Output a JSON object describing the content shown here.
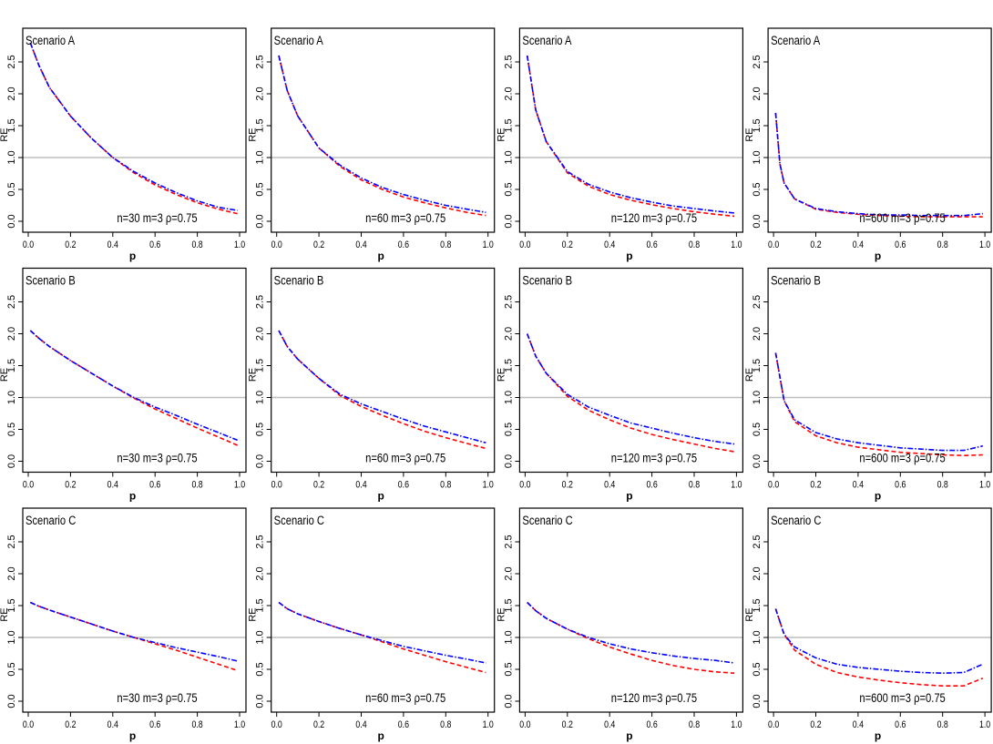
{
  "common": {
    "xlabel": "p",
    "ylabel": "RE",
    "xlim": [
      0,
      1
    ],
    "ylim": [
      0,
      3.0
    ],
    "xticks": [
      "0.0",
      "0.2",
      "0.4",
      "0.6",
      "0.8",
      "1.0"
    ],
    "yticks": [
      "0.0",
      "0.5",
      "1.0",
      "1.5",
      "2.0",
      "2.5"
    ],
    "reference_line": 1.0,
    "reference_color": "#bebebe",
    "series_styles": [
      {
        "color": "#ff0000",
        "dash": "dashed"
      },
      {
        "color": "#0000ff",
        "dash": "dashdot"
      }
    ]
  },
  "chart_data": [
    {
      "type": "line",
      "title": "Scenario A",
      "annotation": "n=30 m=3 ρ=0.75",
      "x": [
        0.01,
        0.05,
        0.1,
        0.2,
        0.3,
        0.4,
        0.5,
        0.6,
        0.7,
        0.8,
        0.9,
        0.99
      ],
      "series": [
        {
          "values": [
            2.8,
            2.45,
            2.1,
            1.65,
            1.3,
            1.0,
            0.76,
            0.57,
            0.42,
            0.29,
            0.19,
            0.12
          ]
        },
        {
          "values": [
            2.8,
            2.45,
            2.1,
            1.65,
            1.3,
            1.0,
            0.78,
            0.6,
            0.45,
            0.32,
            0.22,
            0.17
          ]
        }
      ]
    },
    {
      "type": "line",
      "title": "Scenario A",
      "annotation": "n=60 m=3 ρ=0.75",
      "x": [
        0.01,
        0.05,
        0.1,
        0.2,
        0.3,
        0.4,
        0.5,
        0.6,
        0.7,
        0.8,
        0.9,
        0.99
      ],
      "series": [
        {
          "values": [
            2.6,
            2.05,
            1.65,
            1.15,
            0.86,
            0.65,
            0.5,
            0.38,
            0.29,
            0.21,
            0.14,
            0.09
          ]
        },
        {
          "values": [
            2.6,
            2.05,
            1.65,
            1.15,
            0.88,
            0.68,
            0.53,
            0.42,
            0.33,
            0.25,
            0.19,
            0.14
          ]
        }
      ]
    },
    {
      "type": "line",
      "title": "Scenario A",
      "annotation": "n=120 m=3 ρ=0.75",
      "x": [
        0.01,
        0.05,
        0.1,
        0.2,
        0.3,
        0.4,
        0.5,
        0.6,
        0.7,
        0.8,
        0.9,
        0.99
      ],
      "series": [
        {
          "values": [
            2.6,
            1.75,
            1.25,
            0.76,
            0.55,
            0.42,
            0.33,
            0.26,
            0.2,
            0.15,
            0.11,
            0.08
          ]
        },
        {
          "values": [
            2.6,
            1.75,
            1.25,
            0.78,
            0.58,
            0.46,
            0.37,
            0.3,
            0.24,
            0.2,
            0.16,
            0.13
          ]
        }
      ]
    },
    {
      "type": "line",
      "title": "Scenario A",
      "annotation": "n=600 m=3 ρ=0.75",
      "x": [
        0.01,
        0.03,
        0.05,
        0.1,
        0.2,
        0.3,
        0.4,
        0.5,
        0.6,
        0.7,
        0.8,
        0.9,
        0.99
      ],
      "series": [
        {
          "values": [
            1.7,
            0.9,
            0.6,
            0.35,
            0.19,
            0.14,
            0.11,
            0.09,
            0.08,
            0.07,
            0.07,
            0.07,
            0.07
          ]
        },
        {
          "values": [
            1.7,
            0.9,
            0.6,
            0.35,
            0.2,
            0.15,
            0.12,
            0.1,
            0.1,
            0.09,
            0.09,
            0.09,
            0.12
          ]
        }
      ]
    },
    {
      "type": "line",
      "title": "Scenario B",
      "annotation": "n=30 m=3 ρ=0.75",
      "x": [
        0.01,
        0.05,
        0.1,
        0.2,
        0.3,
        0.4,
        0.5,
        0.6,
        0.7,
        0.8,
        0.9,
        0.99
      ],
      "series": [
        {
          "values": [
            2.05,
            1.93,
            1.8,
            1.58,
            1.38,
            1.18,
            0.99,
            0.82,
            0.67,
            0.52,
            0.38,
            0.25
          ]
        },
        {
          "values": [
            2.05,
            1.93,
            1.8,
            1.58,
            1.38,
            1.18,
            1.0,
            0.85,
            0.72,
            0.58,
            0.45,
            0.33
          ]
        }
      ]
    },
    {
      "type": "line",
      "title": "Scenario B",
      "annotation": "n=60 m=3 ρ=0.75",
      "x": [
        0.01,
        0.05,
        0.1,
        0.2,
        0.3,
        0.4,
        0.5,
        0.6,
        0.7,
        0.8,
        0.9,
        0.99
      ],
      "series": [
        {
          "values": [
            2.05,
            1.8,
            1.6,
            1.3,
            1.03,
            0.86,
            0.72,
            0.59,
            0.47,
            0.37,
            0.28,
            0.2
          ]
        },
        {
          "values": [
            2.05,
            1.8,
            1.6,
            1.3,
            1.05,
            0.9,
            0.78,
            0.66,
            0.55,
            0.46,
            0.37,
            0.29
          ]
        }
      ]
    },
    {
      "type": "line",
      "title": "Scenario B",
      "annotation": "n=120 m=3 ρ=0.75",
      "x": [
        0.01,
        0.05,
        0.1,
        0.2,
        0.3,
        0.4,
        0.5,
        0.6,
        0.7,
        0.8,
        0.9,
        0.99
      ],
      "series": [
        {
          "values": [
            2.0,
            1.65,
            1.38,
            1.02,
            0.8,
            0.65,
            0.52,
            0.42,
            0.34,
            0.27,
            0.2,
            0.15
          ]
        },
        {
          "values": [
            2.0,
            1.65,
            1.38,
            1.05,
            0.85,
            0.72,
            0.6,
            0.52,
            0.44,
            0.37,
            0.31,
            0.27
          ]
        }
      ]
    },
    {
      "type": "line",
      "title": "Scenario B",
      "annotation": "n=600 m=3 ρ=0.75",
      "x": [
        0.01,
        0.05,
        0.1,
        0.2,
        0.3,
        0.4,
        0.5,
        0.6,
        0.7,
        0.8,
        0.9,
        0.99
      ],
      "series": [
        {
          "values": [
            1.7,
            0.95,
            0.62,
            0.4,
            0.29,
            0.22,
            0.18,
            0.14,
            0.12,
            0.1,
            0.09,
            0.1
          ]
        },
        {
          "values": [
            1.7,
            0.95,
            0.65,
            0.45,
            0.35,
            0.29,
            0.25,
            0.21,
            0.19,
            0.17,
            0.17,
            0.24
          ]
        }
      ]
    },
    {
      "type": "line",
      "title": "Scenario C",
      "annotation": "n=30 m=3 ρ=0.75",
      "x": [
        0.01,
        0.05,
        0.1,
        0.2,
        0.3,
        0.4,
        0.5,
        0.6,
        0.7,
        0.8,
        0.9,
        0.99
      ],
      "series": [
        {
          "values": [
            1.55,
            1.49,
            1.43,
            1.32,
            1.21,
            1.1,
            1.0,
            0.9,
            0.8,
            0.69,
            0.58,
            0.48
          ]
        },
        {
          "values": [
            1.55,
            1.49,
            1.43,
            1.32,
            1.21,
            1.1,
            1.0,
            0.92,
            0.84,
            0.77,
            0.7,
            0.63
          ]
        }
      ]
    },
    {
      "type": "line",
      "title": "Scenario C",
      "annotation": "n=60 m=3 ρ=0.75",
      "x": [
        0.01,
        0.05,
        0.1,
        0.2,
        0.3,
        0.4,
        0.5,
        0.6,
        0.7,
        0.8,
        0.9,
        0.99
      ],
      "series": [
        {
          "values": [
            1.55,
            1.45,
            1.37,
            1.25,
            1.14,
            1.04,
            0.93,
            0.82,
            0.72,
            0.62,
            0.53,
            0.45
          ]
        },
        {
          "values": [
            1.55,
            1.45,
            1.37,
            1.25,
            1.14,
            1.04,
            0.95,
            0.86,
            0.79,
            0.72,
            0.66,
            0.6
          ]
        }
      ]
    },
    {
      "type": "line",
      "title": "Scenario C",
      "annotation": "n=120 m=3 ρ=0.75",
      "x": [
        0.01,
        0.05,
        0.1,
        0.2,
        0.3,
        0.4,
        0.5,
        0.6,
        0.7,
        0.8,
        0.9,
        0.99
      ],
      "series": [
        {
          "values": [
            1.55,
            1.42,
            1.3,
            1.13,
            0.98,
            0.85,
            0.74,
            0.64,
            0.56,
            0.5,
            0.46,
            0.44
          ]
        },
        {
          "values": [
            1.55,
            1.42,
            1.3,
            1.13,
            1.0,
            0.9,
            0.82,
            0.76,
            0.71,
            0.67,
            0.64,
            0.6
          ]
        }
      ]
    },
    {
      "type": "line",
      "title": "Scenario C",
      "annotation": "n=600 m=3 ρ=0.75",
      "x": [
        0.01,
        0.05,
        0.1,
        0.2,
        0.3,
        0.4,
        0.5,
        0.6,
        0.7,
        0.8,
        0.9,
        0.99
      ],
      "series": [
        {
          "values": [
            1.45,
            1.05,
            0.8,
            0.58,
            0.45,
            0.38,
            0.33,
            0.29,
            0.26,
            0.24,
            0.24,
            0.36
          ]
        },
        {
          "values": [
            1.45,
            1.05,
            0.85,
            0.68,
            0.58,
            0.53,
            0.5,
            0.47,
            0.45,
            0.44,
            0.45,
            0.58
          ]
        }
      ]
    }
  ]
}
